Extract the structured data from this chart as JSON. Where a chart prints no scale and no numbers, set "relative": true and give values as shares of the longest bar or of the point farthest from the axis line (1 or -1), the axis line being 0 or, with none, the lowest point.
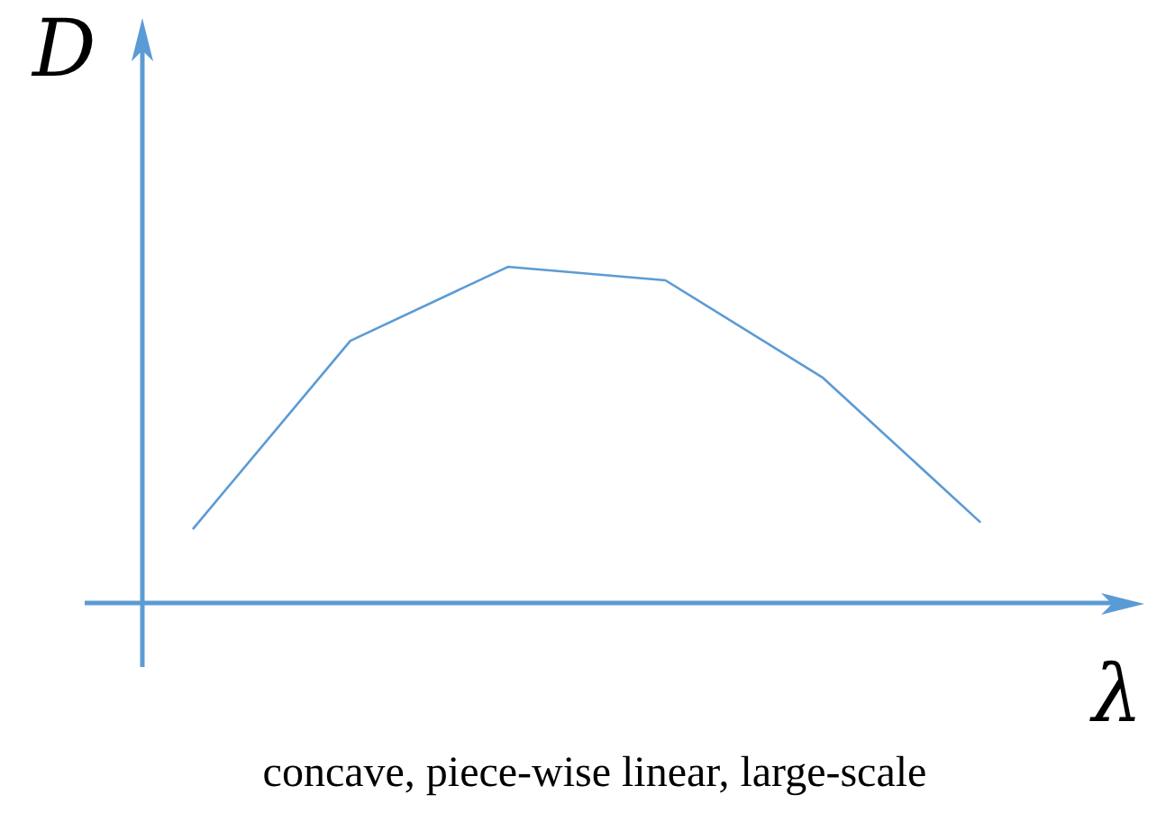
{
  "chart_data": {
    "type": "line",
    "relative": true,
    "ylabel": "D",
    "xlabel": "λ",
    "annotations": [
      "concave, piece-wise linear, large-scale"
    ],
    "categories": [
      null,
      null,
      null,
      null,
      null,
      null
    ],
    "series": [
      {
        "color": "#5b9bd5",
        "values": [
          0.22,
          0.78,
          1,
          0.96,
          0.67,
          0.24
        ]
      }
    ],
    "marker": "none"
  }
}
